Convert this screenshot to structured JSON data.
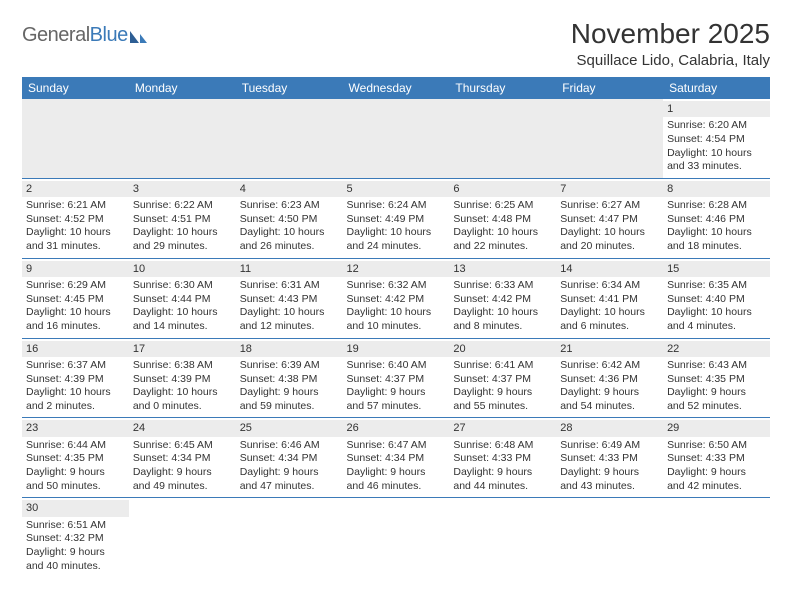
{
  "brand": {
    "part1": "General",
    "part2": "Blue"
  },
  "title": "November 2025",
  "subtitle": "Squillace Lido, Calabria, Italy",
  "colors": {
    "header_bg": "#3b7ab8",
    "header_text": "#ffffff",
    "daynum_bg": "#ececec",
    "text": "#333333"
  },
  "weekdays": [
    "Sunday",
    "Monday",
    "Tuesday",
    "Wednesday",
    "Thursday",
    "Friday",
    "Saturday"
  ],
  "weeks": [
    [
      null,
      null,
      null,
      null,
      null,
      null,
      {
        "n": "1",
        "sr": "Sunrise: 6:20 AM",
        "ss": "Sunset: 4:54 PM",
        "dl1": "Daylight: 10 hours",
        "dl2": "and 33 minutes."
      }
    ],
    [
      {
        "n": "2",
        "sr": "Sunrise: 6:21 AM",
        "ss": "Sunset: 4:52 PM",
        "dl1": "Daylight: 10 hours",
        "dl2": "and 31 minutes."
      },
      {
        "n": "3",
        "sr": "Sunrise: 6:22 AM",
        "ss": "Sunset: 4:51 PM",
        "dl1": "Daylight: 10 hours",
        "dl2": "and 29 minutes."
      },
      {
        "n": "4",
        "sr": "Sunrise: 6:23 AM",
        "ss": "Sunset: 4:50 PM",
        "dl1": "Daylight: 10 hours",
        "dl2": "and 26 minutes."
      },
      {
        "n": "5",
        "sr": "Sunrise: 6:24 AM",
        "ss": "Sunset: 4:49 PM",
        "dl1": "Daylight: 10 hours",
        "dl2": "and 24 minutes."
      },
      {
        "n": "6",
        "sr": "Sunrise: 6:25 AM",
        "ss": "Sunset: 4:48 PM",
        "dl1": "Daylight: 10 hours",
        "dl2": "and 22 minutes."
      },
      {
        "n": "7",
        "sr": "Sunrise: 6:27 AM",
        "ss": "Sunset: 4:47 PM",
        "dl1": "Daylight: 10 hours",
        "dl2": "and 20 minutes."
      },
      {
        "n": "8",
        "sr": "Sunrise: 6:28 AM",
        "ss": "Sunset: 4:46 PM",
        "dl1": "Daylight: 10 hours",
        "dl2": "and 18 minutes."
      }
    ],
    [
      {
        "n": "9",
        "sr": "Sunrise: 6:29 AM",
        "ss": "Sunset: 4:45 PM",
        "dl1": "Daylight: 10 hours",
        "dl2": "and 16 minutes."
      },
      {
        "n": "10",
        "sr": "Sunrise: 6:30 AM",
        "ss": "Sunset: 4:44 PM",
        "dl1": "Daylight: 10 hours",
        "dl2": "and 14 minutes."
      },
      {
        "n": "11",
        "sr": "Sunrise: 6:31 AM",
        "ss": "Sunset: 4:43 PM",
        "dl1": "Daylight: 10 hours",
        "dl2": "and 12 minutes."
      },
      {
        "n": "12",
        "sr": "Sunrise: 6:32 AM",
        "ss": "Sunset: 4:42 PM",
        "dl1": "Daylight: 10 hours",
        "dl2": "and 10 minutes."
      },
      {
        "n": "13",
        "sr": "Sunrise: 6:33 AM",
        "ss": "Sunset: 4:42 PM",
        "dl1": "Daylight: 10 hours",
        "dl2": "and 8 minutes."
      },
      {
        "n": "14",
        "sr": "Sunrise: 6:34 AM",
        "ss": "Sunset: 4:41 PM",
        "dl1": "Daylight: 10 hours",
        "dl2": "and 6 minutes."
      },
      {
        "n": "15",
        "sr": "Sunrise: 6:35 AM",
        "ss": "Sunset: 4:40 PM",
        "dl1": "Daylight: 10 hours",
        "dl2": "and 4 minutes."
      }
    ],
    [
      {
        "n": "16",
        "sr": "Sunrise: 6:37 AM",
        "ss": "Sunset: 4:39 PM",
        "dl1": "Daylight: 10 hours",
        "dl2": "and 2 minutes."
      },
      {
        "n": "17",
        "sr": "Sunrise: 6:38 AM",
        "ss": "Sunset: 4:39 PM",
        "dl1": "Daylight: 10 hours",
        "dl2": "and 0 minutes."
      },
      {
        "n": "18",
        "sr": "Sunrise: 6:39 AM",
        "ss": "Sunset: 4:38 PM",
        "dl1": "Daylight: 9 hours",
        "dl2": "and 59 minutes."
      },
      {
        "n": "19",
        "sr": "Sunrise: 6:40 AM",
        "ss": "Sunset: 4:37 PM",
        "dl1": "Daylight: 9 hours",
        "dl2": "and 57 minutes."
      },
      {
        "n": "20",
        "sr": "Sunrise: 6:41 AM",
        "ss": "Sunset: 4:37 PM",
        "dl1": "Daylight: 9 hours",
        "dl2": "and 55 minutes."
      },
      {
        "n": "21",
        "sr": "Sunrise: 6:42 AM",
        "ss": "Sunset: 4:36 PM",
        "dl1": "Daylight: 9 hours",
        "dl2": "and 54 minutes."
      },
      {
        "n": "22",
        "sr": "Sunrise: 6:43 AM",
        "ss": "Sunset: 4:35 PM",
        "dl1": "Daylight: 9 hours",
        "dl2": "and 52 minutes."
      }
    ],
    [
      {
        "n": "23",
        "sr": "Sunrise: 6:44 AM",
        "ss": "Sunset: 4:35 PM",
        "dl1": "Daylight: 9 hours",
        "dl2": "and 50 minutes."
      },
      {
        "n": "24",
        "sr": "Sunrise: 6:45 AM",
        "ss": "Sunset: 4:34 PM",
        "dl1": "Daylight: 9 hours",
        "dl2": "and 49 minutes."
      },
      {
        "n": "25",
        "sr": "Sunrise: 6:46 AM",
        "ss": "Sunset: 4:34 PM",
        "dl1": "Daylight: 9 hours",
        "dl2": "and 47 minutes."
      },
      {
        "n": "26",
        "sr": "Sunrise: 6:47 AM",
        "ss": "Sunset: 4:34 PM",
        "dl1": "Daylight: 9 hours",
        "dl2": "and 46 minutes."
      },
      {
        "n": "27",
        "sr": "Sunrise: 6:48 AM",
        "ss": "Sunset: 4:33 PM",
        "dl1": "Daylight: 9 hours",
        "dl2": "and 44 minutes."
      },
      {
        "n": "28",
        "sr": "Sunrise: 6:49 AM",
        "ss": "Sunset: 4:33 PM",
        "dl1": "Daylight: 9 hours",
        "dl2": "and 43 minutes."
      },
      {
        "n": "29",
        "sr": "Sunrise: 6:50 AM",
        "ss": "Sunset: 4:33 PM",
        "dl1": "Daylight: 9 hours",
        "dl2": "and 42 minutes."
      }
    ],
    [
      {
        "n": "30",
        "sr": "Sunrise: 6:51 AM",
        "ss": "Sunset: 4:32 PM",
        "dl1": "Daylight: 9 hours",
        "dl2": "and 40 minutes."
      },
      null,
      null,
      null,
      null,
      null,
      null
    ]
  ]
}
